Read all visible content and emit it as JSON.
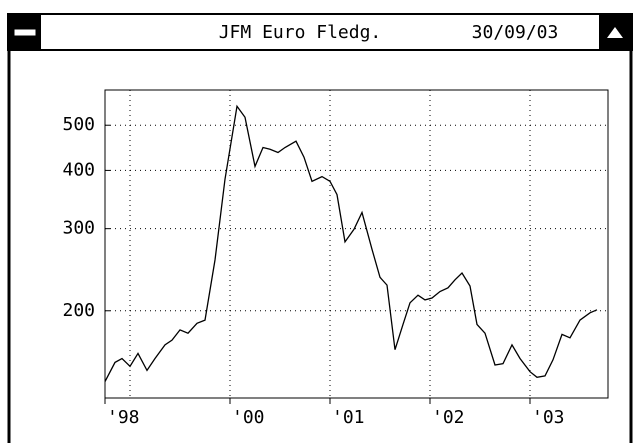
{
  "window": {
    "title": "JFM Euro Fledg.",
    "date": "30/09/03"
  },
  "chart_data": {
    "type": "line",
    "log_scale": true,
    "grid": true,
    "color": "#000000",
    "x": [
      1998.75,
      1998.85,
      1998.92,
      1999.0,
      1999.08,
      1999.17,
      1999.25,
      1999.35,
      1999.42,
      1999.5,
      1999.58,
      1999.67,
      1999.75,
      1999.85,
      1999.95,
      2000.07,
      2000.15,
      2000.25,
      2000.33,
      2000.4,
      2000.48,
      2000.55,
      2000.66,
      2000.74,
      2000.82,
      2000.92,
      2001.0,
      2001.07,
      2001.15,
      2001.24,
      2001.32,
      2001.42,
      2001.5,
      2001.57,
      2001.65,
      2001.73,
      2001.8,
      2001.88,
      2001.95,
      2002.02,
      2002.1,
      2002.18,
      2002.25,
      2002.32,
      2002.4,
      2002.47,
      2002.55,
      2002.65,
      2002.73,
      2002.82,
      2002.9,
      2003.0,
      2003.07,
      2003.15,
      2003.23,
      2003.32,
      2003.4,
      2003.5,
      2003.6,
      2003.67
    ],
    "values": [
      141,
      155,
      158,
      152,
      162,
      149,
      158,
      169,
      173,
      182,
      179,
      188,
      191,
      257,
      383,
      549,
      520,
      408,
      448,
      444,
      437,
      448,
      462,
      427,
      379,
      388,
      379,
      355,
      281,
      299,
      325,
      271,
      236,
      227,
      165,
      187,
      208,
      216,
      211,
      213,
      220,
      224,
      233,
      241,
      226,
      187,
      179,
      153,
      154,
      169,
      158,
      148,
      144,
      145,
      157,
      178,
      175,
      191,
      198,
      201
    ],
    "xlim": [
      1998.75,
      2003.78
    ],
    "xticks": [
      {
        "value": 1998.75,
        "label": "'98"
      },
      {
        "value": 2000,
        "label": "'00"
      },
      {
        "value": 2001,
        "label": "'01"
      },
      {
        "value": 2002,
        "label": "'02"
      },
      {
        "value": 2003,
        "label": "'03"
      }
    ],
    "xgrid": [
      1999,
      2000,
      2001,
      2002,
      2003
    ],
    "ylim": [
      130,
      595
    ],
    "yticks": [
      200,
      300,
      400,
      500
    ]
  }
}
